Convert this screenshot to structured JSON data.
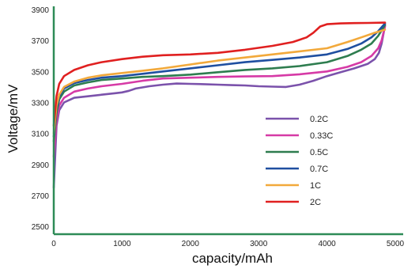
{
  "chart_data": {
    "type": "line",
    "title": "",
    "xlabel": "capacity/mAh",
    "ylabel": "Voltage/mV",
    "xlim": [
      0,
      5000
    ],
    "ylim": [
      2450,
      3900
    ],
    "xticks": [
      0,
      1000,
      2000,
      3000,
      4000,
      5000
    ],
    "yticks": [
      2500,
      2700,
      2900,
      3100,
      3300,
      3500,
      3700,
      3900
    ],
    "grid": false,
    "axis_color": "#2e8b57",
    "legend_position": "center-right",
    "series": [
      {
        "name": "0.2C",
        "color": "#7b52ab",
        "x": [
          0,
          40,
          80,
          150,
          300,
          500,
          700,
          900,
          1000,
          1100,
          1200,
          1400,
          1600,
          1800,
          2000,
          2200,
          2400,
          2600,
          2800,
          3000,
          3200,
          3400,
          3600,
          3800,
          4000,
          4200,
          4400,
          4600,
          4700,
          4760,
          4800,
          4830,
          4850
        ],
        "y": [
          2750,
          3150,
          3250,
          3300,
          3330,
          3340,
          3350,
          3360,
          3365,
          3375,
          3390,
          3405,
          3415,
          3422,
          3420,
          3418,
          3415,
          3412,
          3410,
          3405,
          3402,
          3400,
          3415,
          3440,
          3470,
          3495,
          3520,
          3550,
          3580,
          3620,
          3680,
          3750,
          3800
        ]
      },
      {
        "name": "0.33C",
        "color": "#d63aa6",
        "x": [
          0,
          40,
          80,
          150,
          300,
          500,
          700,
          1000,
          1300,
          1600,
          2000,
          2400,
          2800,
          3200,
          3600,
          4000,
          4300,
          4500,
          4650,
          4750,
          4800,
          4850
        ],
        "y": [
          2950,
          3180,
          3280,
          3330,
          3370,
          3390,
          3405,
          3420,
          3440,
          3455,
          3460,
          3465,
          3468,
          3470,
          3482,
          3500,
          3530,
          3560,
          3600,
          3650,
          3700,
          3790
        ]
      },
      {
        "name": "0.5C",
        "color": "#2e7d4f",
        "x": [
          0,
          40,
          80,
          150,
          300,
          500,
          700,
          1000,
          1300,
          1600,
          2000,
          2400,
          2800,
          3200,
          3600,
          4000,
          4300,
          4500,
          4650,
          4750,
          4850
        ],
        "y": [
          3050,
          3230,
          3320,
          3370,
          3410,
          3430,
          3445,
          3455,
          3465,
          3470,
          3480,
          3495,
          3510,
          3520,
          3535,
          3560,
          3600,
          3640,
          3680,
          3730,
          3800
        ]
      },
      {
        "name": "0.7C",
        "color": "#1f4fa0",
        "x": [
          0,
          40,
          80,
          150,
          300,
          500,
          700,
          1000,
          1300,
          1600,
          2000,
          2400,
          2800,
          3200,
          3600,
          4000,
          4300,
          4500,
          4650,
          4750,
          4850
        ],
        "y": [
          3080,
          3260,
          3340,
          3390,
          3425,
          3445,
          3460,
          3470,
          3485,
          3500,
          3520,
          3540,
          3560,
          3575,
          3590,
          3610,
          3645,
          3680,
          3720,
          3760,
          3810
        ]
      },
      {
        "name": "1C",
        "color": "#f2a93b",
        "x": [
          0,
          40,
          80,
          150,
          300,
          500,
          700,
          1000,
          1300,
          1600,
          2000,
          2400,
          2800,
          3200,
          3600,
          4000,
          4300,
          4500,
          4700,
          4850
        ],
        "y": [
          3100,
          3280,
          3350,
          3400,
          3435,
          3460,
          3475,
          3490,
          3505,
          3520,
          3545,
          3570,
          3590,
          3610,
          3630,
          3650,
          3690,
          3720,
          3750,
          3770
        ]
      },
      {
        "name": "2C",
        "color": "#e02020",
        "x": [
          0,
          40,
          80,
          150,
          300,
          500,
          700,
          1000,
          1300,
          1600,
          2000,
          2400,
          2800,
          3200,
          3500,
          3700,
          3800,
          3900,
          4000,
          4200,
          4400,
          4600,
          4850
        ],
        "y": [
          3150,
          3340,
          3420,
          3470,
          3510,
          3540,
          3560,
          3580,
          3595,
          3605,
          3610,
          3620,
          3640,
          3665,
          3690,
          3720,
          3750,
          3790,
          3805,
          3810,
          3812,
          3813,
          3815
        ]
      }
    ]
  }
}
